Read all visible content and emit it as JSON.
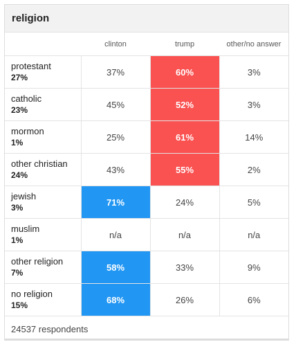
{
  "title": "religion",
  "columns": [
    "clinton",
    "trump",
    "other/no answer"
  ],
  "colors": {
    "clinton_win": "#2196f3",
    "trump_win": "#fa5151"
  },
  "rows": [
    {
      "name": "protestant",
      "share": "27%",
      "values": [
        "37%",
        "60%",
        "3%"
      ],
      "winner": "trump"
    },
    {
      "name": "catholic",
      "share": "23%",
      "values": [
        "45%",
        "52%",
        "3%"
      ],
      "winner": "trump"
    },
    {
      "name": "mormon",
      "share": "1%",
      "values": [
        "25%",
        "61%",
        "14%"
      ],
      "winner": "trump"
    },
    {
      "name": "other christian",
      "share": "24%",
      "values": [
        "43%",
        "55%",
        "2%"
      ],
      "winner": "trump"
    },
    {
      "name": "jewish",
      "share": "3%",
      "values": [
        "71%",
        "24%",
        "5%"
      ],
      "winner": "clinton"
    },
    {
      "name": "muslim",
      "share": "1%",
      "values": [
        "n/a",
        "n/a",
        "n/a"
      ],
      "winner": "none"
    },
    {
      "name": "other religion",
      "share": "7%",
      "values": [
        "58%",
        "33%",
        "9%"
      ],
      "winner": "clinton"
    },
    {
      "name": "no religion",
      "share": "15%",
      "values": [
        "68%",
        "26%",
        "6%"
      ],
      "winner": "clinton"
    }
  ],
  "footer": "24537 respondents"
}
